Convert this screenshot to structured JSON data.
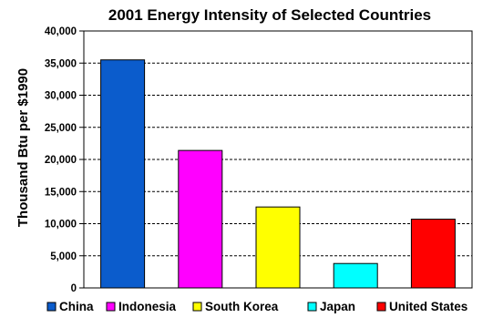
{
  "chart_data": {
    "type": "bar",
    "title": "2001 Energy Intensity of Selected Countries",
    "ylabel": "Thousand Btu per $1990",
    "xlabel": "",
    "categories": [
      "China",
      "Indonesia",
      "South Korea",
      "Japan",
      "United States"
    ],
    "values": [
      35500,
      21400,
      12600,
      3800,
      10700
    ],
    "colors": [
      "#0b5ccc",
      "#ff00ff",
      "#ffff00",
      "#00ffff",
      "#ff0000"
    ],
    "ylim": [
      0,
      40000
    ],
    "yticks": [
      "0",
      "5,000",
      "10,000",
      "15,000",
      "20,000",
      "25,000",
      "30,000",
      "35,000",
      "40,000"
    ],
    "ytick_values": [
      0,
      5000,
      10000,
      15000,
      20000,
      25000,
      30000,
      35000,
      40000
    ],
    "grid": true,
    "grid_style": "dashed",
    "legend_position": "bottom"
  }
}
